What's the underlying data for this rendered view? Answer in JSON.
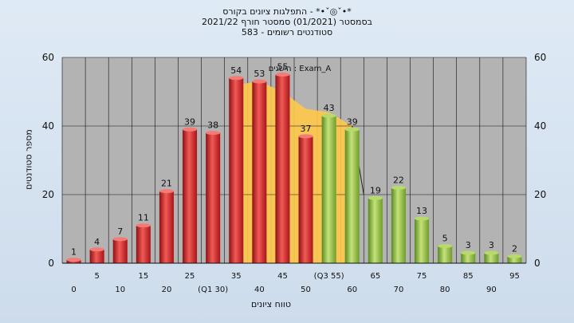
{
  "header": {
    "line1": "התפלגות ציונים בקורס - *•ˇ◎ˇ•*",
    "line2": "בסמסטר  (01/2021)  סמסטר חורף 2021/22",
    "line3": "583 - סטודנטים רשומים"
  },
  "chart_data": {
    "type": "bar",
    "ylabel": "מספר סטודנטים",
    "xlabel": "טווח ציונים",
    "ylim": [
      0,
      60
    ],
    "yticks": [
      0,
      20,
      40,
      60
    ],
    "grid": true,
    "categories": [
      "0",
      "5",
      "10",
      "15",
      "20",
      "25",
      "30",
      "35",
      "40",
      "45",
      "50",
      "55",
      "60",
      "65",
      "70",
      "75",
      "80",
      "85",
      "90",
      "95"
    ],
    "values": [
      1,
      4,
      7,
      11,
      21,
      39,
      38,
      54,
      53,
      55,
      37,
      43,
      39,
      19,
      22,
      13,
      5,
      3,
      3,
      2
    ],
    "tick_labels_row1": [
      "5",
      "15",
      "25",
      "35",
      "45",
      "(Q3 55)",
      "65",
      "75",
      "85",
      "95"
    ],
    "tick_labels_row2": [
      "0",
      "10",
      "20",
      "(Q1 30)",
      "40",
      "50",
      "60",
      "70",
      "80",
      "90"
    ],
    "annotation": "הישגים : Exam_A",
    "colors": {
      "low": "#e0282c",
      "high": "#8dbf3d",
      "area": "#ffc84a",
      "plot_bg": "#b3b3b3",
      "grid": "#111111"
    },
    "area_series": [
      0,
      0,
      0,
      0,
      0,
      0,
      0,
      52,
      53,
      50,
      45,
      44,
      40,
      0,
      0,
      0,
      0,
      0,
      0,
      0
    ]
  }
}
